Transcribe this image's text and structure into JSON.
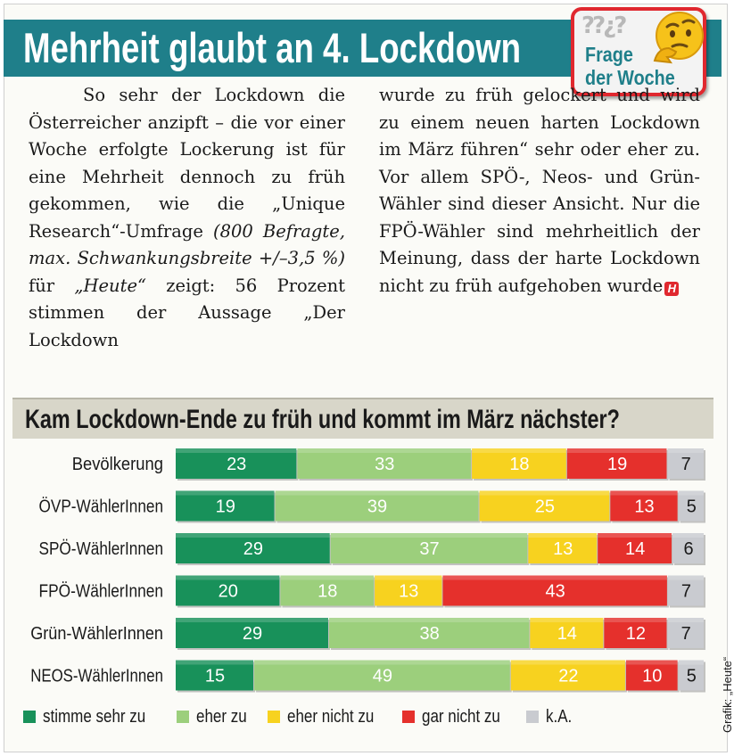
{
  "headline": "Mehrheit glaubt an 4. Lockdown",
  "badge": {
    "line1": "Frage",
    "line2": "der Woche",
    "icon": "thinking-face-icon"
  },
  "article": {
    "col_left_a": "So sehr der Lockdown die Österreicher anzipft – die vor einer Woche erfolgte Lockerung ist für eine Mehrheit dennoch zu früh gekommen, wie die „Unique Research“-Umfrage ",
    "col_left_italic": "(800 Befragte, max. Schwankungsbreite +/–3,5 %)",
    "col_left_b": " für ",
    "col_left_heute": "„Heute“",
    "col_left_c": " zeigt: 56 Prozent stimmen der Aussage „Der Lockdown",
    "col_right": "wurde zu früh gelockert und wird zu einem neuen harten Lockdown im März führen“ sehr oder eher zu. Vor allem SPÖ-, Neos- und Grün-Wähler sind dieser Ansicht. Nur die FPÖ-Wähler sind mehrheitlich der Meinung, dass der harte Lockdown nicht zu früh aufgehoben wurde",
    "logo_letter": "H"
  },
  "credit": "Grafik: „Heute“",
  "chart_data": {
    "type": "bar",
    "orientation": "horizontal",
    "stacked": true,
    "title": "Kam Lockdown-Ende zu früh und kommt im März nächster?",
    "categories": [
      "Bevölkerung",
      "ÖVP-WählerInnen",
      "SPÖ-WählerInnen",
      "FPÖ-WählerInnen",
      "Grün-WählerInnen",
      "NEOS-WählerInnen"
    ],
    "series": [
      {
        "name": "stimme sehr zu",
        "color": "#18915a",
        "label_color": "#ffffff",
        "values": [
          23,
          19,
          29,
          20,
          29,
          15
        ]
      },
      {
        "name": "eher zu",
        "color": "#9ccf7c",
        "label_color": "#ffffff",
        "values": [
          33,
          39,
          37,
          18,
          38,
          49
        ]
      },
      {
        "name": "eher nicht zu",
        "color": "#f7d21f",
        "label_color": "#ffffff",
        "values": [
          18,
          25,
          13,
          13,
          14,
          22
        ]
      },
      {
        "name": "gar nicht zu",
        "color": "#e5302c",
        "label_color": "#ffffff",
        "values": [
          19,
          13,
          14,
          43,
          12,
          10
        ]
      },
      {
        "name": "k.A.",
        "color": "#c9cbd0",
        "label_color": "#1a1a1a",
        "values": [
          7,
          5,
          6,
          7,
          7,
          5
        ]
      }
    ],
    "legend_position": "bottom",
    "unit": "percent"
  }
}
